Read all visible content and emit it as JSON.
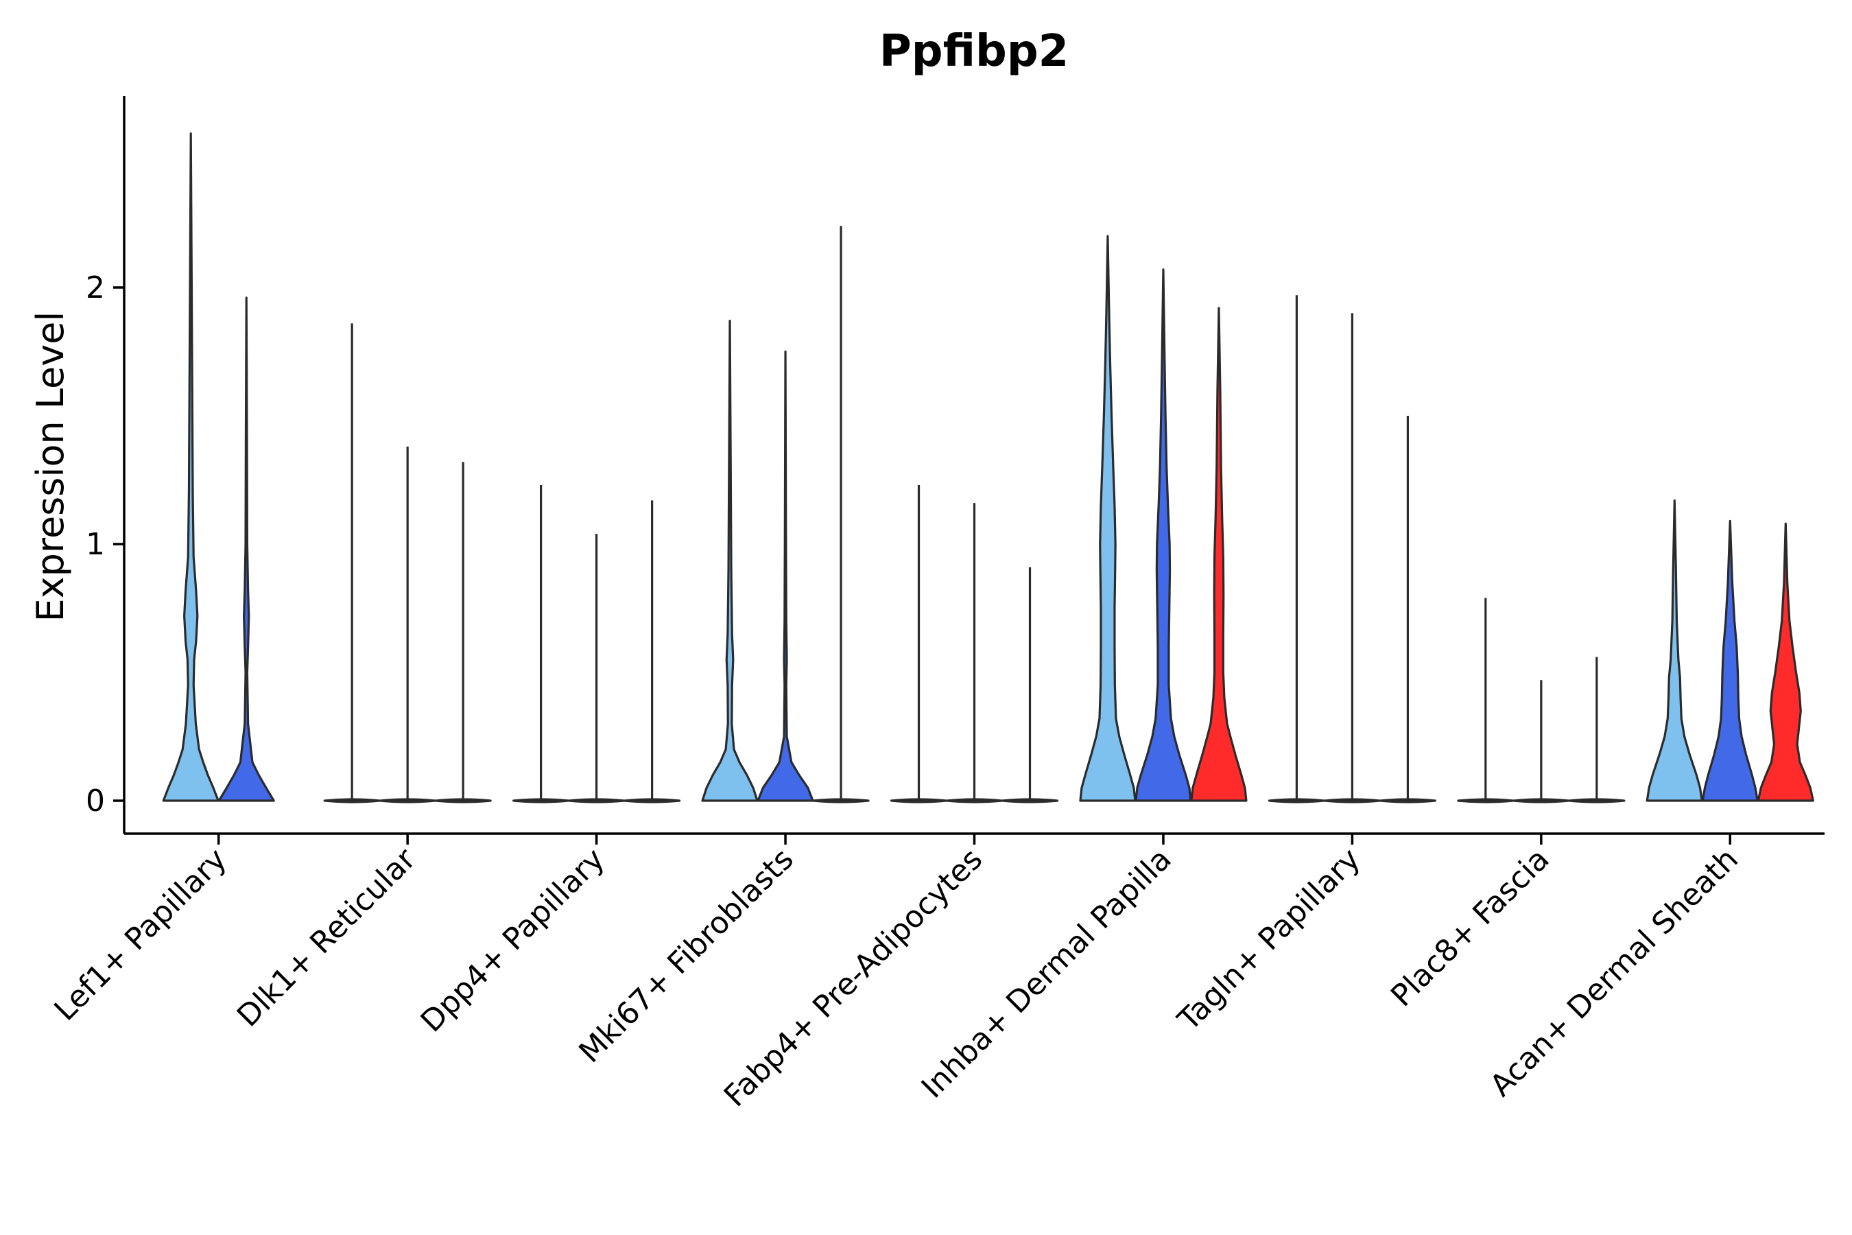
{
  "chart_data": {
    "type": "violin",
    "title": "Ppfibp2",
    "xlabel": "",
    "ylabel": "Expression Level",
    "yticks": [
      0,
      1,
      2
    ],
    "ylim": [
      -0.13,
      2.75
    ],
    "grid": false,
    "legend": "none",
    "groups": [
      "g1",
      "g2",
      "g3"
    ],
    "group_colors": [
      "#7fc1ee",
      "#4169e8",
      "#ff2b2b"
    ],
    "zero_line_color": "#2b2b2b",
    "categories": [
      {
        "label": "Lef1+ Papillary",
        "violins": [
          {
            "group": 0,
            "max": 2.6,
            "filled": true,
            "dens": [
              [
                0,
                1
              ],
              [
                0.05,
                0.82
              ],
              [
                0.1,
                0.62
              ],
              [
                0.15,
                0.45
              ],
              [
                0.2,
                0.3
              ],
              [
                0.3,
                0.18
              ],
              [
                0.45,
                0.1
              ],
              [
                0.55,
                0.12
              ],
              [
                0.62,
                0.19
              ],
              [
                0.72,
                0.24
              ],
              [
                0.82,
                0.19
              ],
              [
                0.95,
                0.1
              ],
              [
                1.2,
                0.07
              ],
              [
                1.6,
                0.05
              ],
              [
                2.0,
                0.03
              ],
              [
                2.6,
                0.0
              ]
            ]
          },
          {
            "group": 1,
            "max": 1.96,
            "filled": true,
            "dens": [
              [
                0,
                1
              ],
              [
                0.05,
                0.72
              ],
              [
                0.1,
                0.45
              ],
              [
                0.15,
                0.22
              ],
              [
                0.3,
                0.06
              ],
              [
                0.5,
                0.03
              ],
              [
                0.6,
                0.06
              ],
              [
                0.72,
                0.09
              ],
              [
                0.82,
                0.06
              ],
              [
                1.0,
                0.03
              ],
              [
                1.4,
                0.02
              ],
              [
                1.96,
                0.0
              ]
            ]
          }
        ]
      },
      {
        "label": "Dlk1+ Reticular",
        "violins": [
          {
            "group": 0,
            "max": 1.86,
            "filled": false
          },
          {
            "group": 1,
            "max": 1.38,
            "filled": false
          },
          {
            "group": 2,
            "max": 1.32,
            "filled": false
          }
        ]
      },
      {
        "label": "Dpp4+ Papillary",
        "violins": [
          {
            "group": 0,
            "max": 1.23,
            "filled": false
          },
          {
            "group": 1,
            "max": 1.04,
            "filled": false
          },
          {
            "group": 2,
            "max": 1.17,
            "filled": false
          }
        ]
      },
      {
        "label": "Mki67+ Fibroblasts",
        "violins": [
          {
            "group": 0,
            "max": 1.87,
            "filled": true,
            "dens": [
              [
                0,
                1
              ],
              [
                0.05,
                0.85
              ],
              [
                0.1,
                0.62
              ],
              [
                0.15,
                0.35
              ],
              [
                0.2,
                0.15
              ],
              [
                0.3,
                0.07
              ],
              [
                0.45,
                0.08
              ],
              [
                0.55,
                0.12
              ],
              [
                0.65,
                0.08
              ],
              [
                0.9,
                0.05
              ],
              [
                1.3,
                0.03
              ],
              [
                1.87,
                0.0
              ]
            ]
          },
          {
            "group": 1,
            "max": 1.75,
            "filled": true,
            "dens": [
              [
                0,
                1
              ],
              [
                0.05,
                0.82
              ],
              [
                0.1,
                0.5
              ],
              [
                0.15,
                0.22
              ],
              [
                0.25,
                0.05
              ],
              [
                0.45,
                0.03
              ],
              [
                0.55,
                0.05
              ],
              [
                0.7,
                0.03
              ],
              [
                1.0,
                0.02
              ],
              [
                1.75,
                0.0
              ]
            ]
          },
          {
            "group": 2,
            "max": 2.24,
            "filled": false
          }
        ]
      },
      {
        "label": "Fabp4+ Pre-Adipocytes",
        "violins": [
          {
            "group": 0,
            "max": 1.23,
            "filled": false
          },
          {
            "group": 1,
            "max": 1.16,
            "filled": false
          },
          {
            "group": 2,
            "max": 0.91,
            "filled": false
          }
        ]
      },
      {
        "label": "Inhba+ Dermal Papilla",
        "violins": [
          {
            "group": 0,
            "max": 2.2,
            "filled": true,
            "dens": [
              [
                0,
                1
              ],
              [
                0.05,
                0.95
              ],
              [
                0.1,
                0.82
              ],
              [
                0.18,
                0.6
              ],
              [
                0.25,
                0.42
              ],
              [
                0.32,
                0.3
              ],
              [
                0.45,
                0.26
              ],
              [
                0.6,
                0.25
              ],
              [
                0.75,
                0.25
              ],
              [
                0.9,
                0.27
              ],
              [
                1.0,
                0.28
              ],
              [
                1.15,
                0.25
              ],
              [
                1.3,
                0.2
              ],
              [
                1.5,
                0.14
              ],
              [
                1.7,
                0.09
              ],
              [
                1.9,
                0.05
              ],
              [
                2.2,
                0.0
              ]
            ]
          },
          {
            "group": 1,
            "max": 2.07,
            "filled": true,
            "dens": [
              [
                0,
                1
              ],
              [
                0.05,
                0.95
              ],
              [
                0.1,
                0.82
              ],
              [
                0.18,
                0.58
              ],
              [
                0.25,
                0.4
              ],
              [
                0.32,
                0.28
              ],
              [
                0.45,
                0.2
              ],
              [
                0.6,
                0.2
              ],
              [
                0.75,
                0.22
              ],
              [
                0.9,
                0.24
              ],
              [
                1.0,
                0.23
              ],
              [
                1.15,
                0.17
              ],
              [
                1.3,
                0.12
              ],
              [
                1.5,
                0.08
              ],
              [
                1.7,
                0.05
              ],
              [
                2.07,
                0.0
              ]
            ]
          },
          {
            "group": 2,
            "max": 1.92,
            "filled": true,
            "dens": [
              [
                0,
                1
              ],
              [
                0.05,
                0.95
              ],
              [
                0.1,
                0.82
              ],
              [
                0.18,
                0.6
              ],
              [
                0.25,
                0.42
              ],
              [
                0.3,
                0.3
              ],
              [
                0.4,
                0.2
              ],
              [
                0.5,
                0.16
              ],
              [
                0.65,
                0.16
              ],
              [
                0.8,
                0.17
              ],
              [
                0.95,
                0.16
              ],
              [
                1.1,
                0.12
              ],
              [
                1.3,
                0.08
              ],
              [
                1.6,
                0.05
              ],
              [
                1.92,
                0.0
              ]
            ]
          }
        ]
      },
      {
        "label": "Tagln+ Papillary",
        "violins": [
          {
            "group": 0,
            "max": 1.97,
            "filled": false
          },
          {
            "group": 1,
            "max": 1.9,
            "filled": false
          },
          {
            "group": 2,
            "max": 1.5,
            "filled": false
          }
        ]
      },
      {
        "label": "Plac8+ Fascia",
        "violins": [
          {
            "group": 0,
            "max": 0.79,
            "filled": false
          },
          {
            "group": 1,
            "max": 0.47,
            "filled": false
          },
          {
            "group": 2,
            "max": 0.56,
            "filled": false
          }
        ]
      },
      {
        "label": "Acan+ Dermal Sheath",
        "violins": [
          {
            "group": 0,
            "max": 1.17,
            "filled": true,
            "dens": [
              [
                0,
                1
              ],
              [
                0.05,
                0.93
              ],
              [
                0.1,
                0.8
              ],
              [
                0.18,
                0.55
              ],
              [
                0.25,
                0.36
              ],
              [
                0.32,
                0.25
              ],
              [
                0.4,
                0.22
              ],
              [
                0.48,
                0.2
              ],
              [
                0.55,
                0.14
              ],
              [
                0.7,
                0.08
              ],
              [
                0.9,
                0.05
              ],
              [
                1.17,
                0.0
              ]
            ]
          },
          {
            "group": 1,
            "max": 1.09,
            "filled": true,
            "dens": [
              [
                0,
                1
              ],
              [
                0.05,
                0.92
              ],
              [
                0.1,
                0.8
              ],
              [
                0.18,
                0.58
              ],
              [
                0.25,
                0.42
              ],
              [
                0.32,
                0.33
              ],
              [
                0.4,
                0.3
              ],
              [
                0.5,
                0.28
              ],
              [
                0.6,
                0.24
              ],
              [
                0.7,
                0.16
              ],
              [
                0.85,
                0.08
              ],
              [
                1.09,
                0.0
              ]
            ]
          },
          {
            "group": 2,
            "max": 1.08,
            "filled": true,
            "dens": [
              [
                0,
                1
              ],
              [
                0.05,
                0.9
              ],
              [
                0.1,
                0.72
              ],
              [
                0.15,
                0.52
              ],
              [
                0.22,
                0.42
              ],
              [
                0.28,
                0.48
              ],
              [
                0.35,
                0.55
              ],
              [
                0.42,
                0.5
              ],
              [
                0.5,
                0.38
              ],
              [
                0.6,
                0.25
              ],
              [
                0.7,
                0.14
              ],
              [
                0.85,
                0.06
              ],
              [
                1.08,
                0.0
              ]
            ]
          }
        ]
      }
    ]
  }
}
